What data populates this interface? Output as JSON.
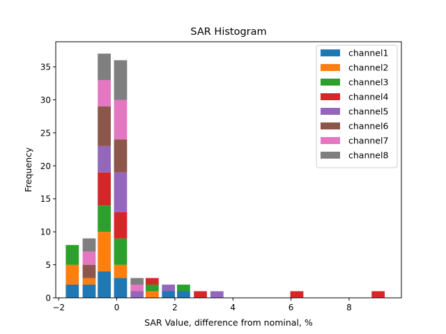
{
  "chart_data": {
    "type": "bar",
    "stacked": true,
    "title": "SAR Histogram",
    "xlabel": "SAR Value, difference from nominal, %",
    "ylabel": "Frequency",
    "xlim": [
      -2.1,
      9.8
    ],
    "ylim": [
      0,
      38.8
    ],
    "xticks": [
      -2,
      0,
      2,
      4,
      6,
      8
    ],
    "xtick_labels": [
      "−2",
      "0",
      "2",
      "4",
      "6",
      "8"
    ],
    "yticks": [
      0,
      5,
      10,
      15,
      20,
      25,
      30,
      35
    ],
    "ytick_labels": [
      "0",
      "5",
      "10",
      "15",
      "20",
      "25",
      "30",
      "35"
    ],
    "bar_width": 0.45,
    "legend_position": "upper-right",
    "bin_centers": [
      -1.53,
      -0.95,
      -0.43,
      0.13,
      0.7,
      1.22,
      1.78,
      2.3,
      2.88,
      3.45,
      6.2,
      9.0
    ],
    "series": [
      {
        "name": "channel1",
        "color": "#1f77b4",
        "values": [
          2,
          2,
          4,
          3,
          0,
          0,
          1,
          1,
          0,
          0,
          0,
          0
        ]
      },
      {
        "name": "channel2",
        "color": "#ff7f0e",
        "values": [
          3,
          1,
          6,
          2,
          0,
          1,
          0,
          0,
          0,
          0,
          0,
          0
        ]
      },
      {
        "name": "channel3",
        "color": "#2ca02c",
        "values": [
          3,
          0,
          4,
          4,
          0,
          1,
          0,
          1,
          0,
          0,
          0,
          0
        ]
      },
      {
        "name": "channel4",
        "color": "#d62728",
        "values": [
          0,
          0,
          5,
          4,
          0,
          1,
          0,
          0,
          1,
          0,
          1,
          1
        ]
      },
      {
        "name": "channel5",
        "color": "#9467bd",
        "values": [
          0,
          0,
          4,
          6,
          1,
          0,
          1,
          0,
          0,
          1,
          0,
          0
        ]
      },
      {
        "name": "channel6",
        "color": "#8c564b",
        "values": [
          0,
          2,
          6,
          5,
          0,
          0,
          0,
          0,
          0,
          0,
          0,
          0
        ]
      },
      {
        "name": "channel7",
        "color": "#e377c2",
        "values": [
          0,
          2,
          4,
          6,
          1,
          0,
          0,
          0,
          0,
          0,
          0,
          0
        ]
      },
      {
        "name": "channel8",
        "color": "#7f7f7f",
        "values": [
          0,
          2,
          4,
          6,
          1,
          0,
          0,
          0,
          0,
          0,
          0,
          0
        ]
      }
    ]
  }
}
